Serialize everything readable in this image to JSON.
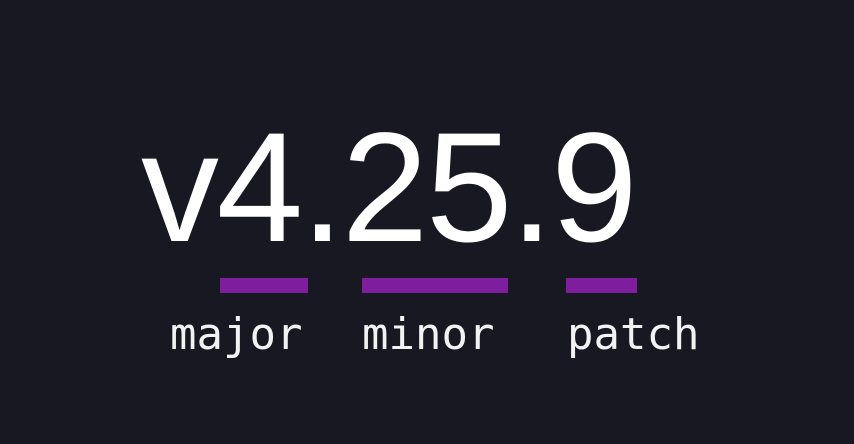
{
  "version": "v4.25.9",
  "accent_color": "#7f1d9f",
  "segments": [
    {
      "label": "major"
    },
    {
      "label": "minor"
    },
    {
      "label": "patch"
    }
  ]
}
